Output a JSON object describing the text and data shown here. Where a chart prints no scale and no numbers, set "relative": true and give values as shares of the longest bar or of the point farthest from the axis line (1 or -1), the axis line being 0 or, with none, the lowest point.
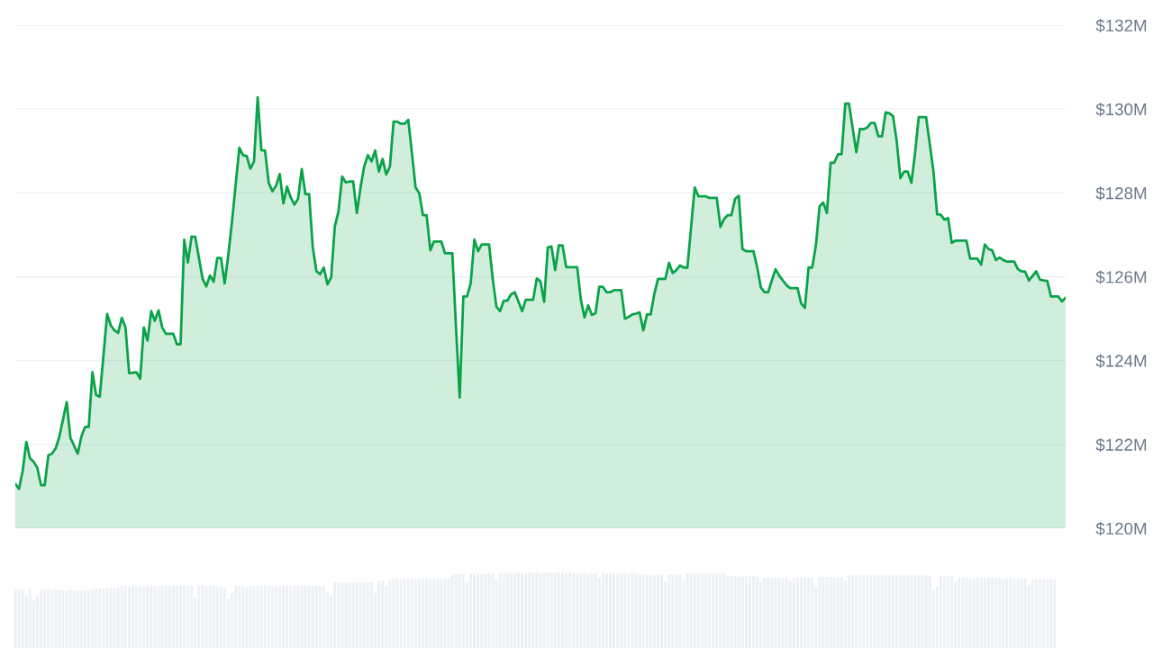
{
  "chart_data": [
    {
      "type": "area",
      "categories": [
        null,
        null,
        null,
        null,
        null,
        null,
        null,
        null,
        null,
        null,
        null,
        null,
        null,
        null,
        null,
        null,
        null,
        null,
        null,
        null,
        null,
        null,
        null,
        null,
        null,
        null,
        null,
        null,
        null,
        null,
        null,
        null,
        null,
        null,
        null,
        null,
        null,
        null,
        null,
        null,
        null,
        null,
        null,
        null,
        null,
        null,
        null,
        null,
        null,
        null,
        null,
        null,
        null,
        null,
        null,
        null,
        null,
        null,
        null,
        null,
        null,
        null,
        null,
        null,
        null,
        null,
        null,
        null,
        null,
        null,
        null,
        null,
        null,
        null,
        null,
        null,
        null,
        null,
        null,
        null,
        null,
        null,
        null,
        null,
        null,
        null,
        null,
        null,
        null,
        null,
        null,
        null,
        null,
        null,
        null,
        null,
        null,
        null,
        null,
        null,
        null,
        null,
        null,
        null,
        null,
        null,
        null,
        null,
        null,
        null,
        null,
        null,
        null,
        null,
        null,
        null,
        null,
        null,
        null,
        null,
        null,
        null,
        null,
        null,
        null,
        null,
        null,
        null,
        null,
        null,
        null,
        null,
        null,
        null,
        null,
        null,
        null,
        null,
        null,
        null,
        null,
        null,
        null,
        null,
        null,
        null,
        null,
        null,
        null,
        null,
        null,
        null,
        null,
        null,
        null,
        null,
        null,
        null,
        null,
        null,
        null,
        null,
        null,
        null,
        null,
        null,
        null,
        null,
        null,
        null,
        null,
        null,
        null,
        null,
        null,
        null,
        null,
        null,
        null,
        null,
        null,
        null,
        null,
        null,
        null,
        null,
        null,
        null,
        null,
        null,
        null,
        null,
        null,
        null,
        null,
        null,
        null,
        null,
        null,
        null,
        null,
        null,
        null,
        null,
        null,
        null,
        null,
        null,
        null,
        null,
        null,
        null,
        null,
        null,
        null,
        null,
        null,
        null,
        null,
        null,
        null,
        null,
        null,
        null,
        null,
        null,
        null,
        null,
        null,
        null,
        null,
        null,
        null,
        null,
        null,
        null,
        null,
        null,
        null,
        null,
        null,
        null,
        null,
        null,
        null,
        null,
        null,
        null,
        null,
        null,
        null,
        null,
        null,
        null,
        null,
        null,
        null,
        null,
        null,
        null,
        null,
        null,
        null,
        null,
        null,
        null,
        null,
        null,
        null,
        null,
        null,
        null,
        null,
        null,
        null,
        null,
        null,
        null,
        null,
        null,
        null,
        null,
        null,
        null,
        null,
        null,
        null
      ],
      "series": [
        {
          "color": "#0aa34a",
          "values": [
            121.06,
            120.94,
            121.37,
            122.06,
            121.67,
            121.59,
            121.44,
            121.03,
            121.03,
            121.74,
            121.78,
            121.91,
            122.19,
            122.6,
            123.01,
            122.16,
            121.97,
            121.78,
            122.19,
            122.42,
            122.42,
            123.72,
            123.18,
            123.14,
            124.12,
            125.11,
            124.84,
            124.72,
            124.66,
            125.02,
            124.79,
            123.7,
            123.71,
            123.72,
            123.57,
            124.79,
            124.48,
            125.18,
            124.95,
            125.2,
            124.79,
            124.64,
            124.64,
            124.64,
            124.39,
            124.39,
            126.88,
            126.34,
            126.96,
            126.95,
            126.45,
            125.95,
            125.77,
            126.03,
            125.88,
            126.45,
            126.45,
            125.84,
            126.52,
            127.31,
            128.2,
            129.08,
            128.9,
            128.88,
            128.58,
            128.75,
            130.28,
            129.02,
            129.01,
            128.24,
            128.04,
            128.17,
            128.45,
            127.75,
            128.15,
            127.89,
            127.72,
            127.86,
            128.57,
            127.97,
            127.97,
            126.7,
            126.13,
            126.06,
            126.22,
            125.82,
            125.98,
            127.2,
            127.56,
            128.39,
            128.25,
            128.27,
            128.27,
            127.52,
            128.13,
            128.63,
            128.9,
            128.75,
            129.01,
            128.51,
            128.81,
            128.44,
            128.63,
            129.7,
            129.7,
            129.65,
            129.65,
            129.74,
            128.95,
            128.13,
            127.99,
            127.47,
            127.47,
            126.63,
            126.84,
            126.84,
            126.84,
            126.56,
            126.56,
            126.56,
            124.8,
            123.12,
            125.53,
            125.53,
            125.84,
            126.89,
            126.61,
            126.77,
            126.77,
            126.77,
            125.95,
            125.29,
            125.18,
            125.43,
            125.43,
            125.58,
            125.63,
            125.41,
            125.18,
            125.45,
            125.45,
            125.45,
            125.96,
            125.89,
            125.4,
            126.7,
            126.72,
            126.16,
            126.75,
            126.75,
            126.23,
            126.23,
            126.23,
            126.23,
            125.45,
            125.03,
            125.32,
            125.09,
            125.13,
            125.76,
            125.76,
            125.63,
            125.63,
            125.68,
            125.68,
            125.68,
            125.0,
            125.04,
            125.1,
            125.12,
            125.15,
            124.72,
            125.1,
            125.1,
            125.59,
            125.95,
            125.95,
            125.95,
            126.33,
            126.09,
            126.16,
            126.27,
            126.22,
            126.22,
            127.17,
            128.13,
            127.92,
            127.92,
            127.92,
            127.88,
            127.88,
            127.88,
            127.19,
            127.38,
            127.47,
            127.47,
            127.86,
            127.93,
            126.66,
            126.61,
            126.61,
            126.61,
            126.23,
            125.75,
            125.63,
            125.63,
            125.91,
            126.18,
            126.03,
            125.91,
            125.8,
            125.73,
            125.73,
            125.73,
            125.36,
            125.26,
            126.22,
            126.22,
            126.75,
            127.68,
            127.77,
            127.52,
            128.72,
            128.72,
            128.92,
            128.92,
            130.13,
            130.13,
            129.55,
            128.97,
            129.53,
            129.52,
            129.56,
            129.67,
            129.67,
            129.35,
            129.35,
            129.92,
            129.9,
            129.83,
            129.24,
            128.35,
            128.51,
            128.51,
            128.24,
            128.95,
            129.81,
            129.81,
            129.81,
            129.17,
            128.52,
            127.49,
            127.48,
            127.36,
            127.4,
            126.81,
            126.86,
            126.86,
            126.86,
            126.86,
            126.43,
            126.43,
            126.43,
            126.29,
            126.77,
            126.66,
            126.63,
            126.4,
            126.46,
            126.4,
            126.36,
            126.36,
            126.36,
            126.18,
            126.13,
            126.12,
            125.91,
            126.02,
            126.13,
            125.93,
            125.91,
            125.9,
            125.53,
            125.53,
            125.53,
            125.41,
            125.5
          ]
        }
      ],
      "ylim": [
        120,
        132
      ],
      "yticks": [
        {
          "value": 120,
          "label": "$120M"
        },
        {
          "value": 122,
          "label": "$122M"
        },
        {
          "value": 124,
          "label": "$124M"
        },
        {
          "value": 126,
          "label": "$126M"
        },
        {
          "value": 128,
          "label": "$128M"
        },
        {
          "value": 130,
          "label": "$130M"
        },
        {
          "value": 132,
          "label": "$132M"
        }
      ],
      "grid": "y",
      "tick_labels": "y"
    },
    {
      "type": "bar",
      "relative": true,
      "categories": [
        null,
        null,
        null,
        null,
        null,
        null,
        null,
        null,
        null,
        null,
        null,
        null,
        null,
        null,
        null,
        null,
        null,
        null,
        null,
        null,
        null,
        null,
        null,
        null,
        null,
        null,
        null,
        null,
        null,
        null,
        null,
        null,
        null,
        null,
        null,
        null,
        null,
        null,
        null,
        null,
        null,
        null,
        null,
        null,
        null,
        null,
        null,
        null,
        null,
        null,
        null,
        null,
        null,
        null,
        null,
        null,
        null,
        null,
        null,
        null,
        null,
        null,
        null,
        null,
        null,
        null,
        null,
        null,
        null,
        null,
        null,
        null,
        null,
        null,
        null,
        null,
        null,
        null,
        null,
        null,
        null,
        null,
        null,
        null,
        null,
        null,
        null,
        null,
        null,
        null,
        null,
        null,
        null,
        null,
        null,
        null,
        null,
        null,
        null,
        null,
        null,
        null,
        null,
        null,
        null,
        null,
        null,
        null,
        null,
        null,
        null,
        null,
        null,
        null,
        null,
        null,
        null,
        null,
        null,
        null,
        null,
        null,
        null,
        null,
        null,
        null,
        null,
        null,
        null,
        null,
        null,
        null,
        null,
        null,
        null,
        null,
        null,
        null,
        null,
        null,
        null,
        null,
        null,
        null,
        null,
        null,
        null,
        null,
        null,
        null,
        null,
        null,
        null,
        null,
        null,
        null,
        null,
        null,
        null,
        null,
        null,
        null,
        null,
        null,
        null,
        null,
        null,
        null,
        null,
        null,
        null,
        null,
        null,
        null,
        null,
        null,
        null,
        null,
        null,
        null,
        null,
        null,
        null,
        null,
        null,
        null,
        null,
        null,
        null,
        null,
        null,
        null,
        null,
        null,
        null,
        null,
        null,
        null,
        null,
        null,
        null,
        null,
        null,
        null,
        null,
        null,
        null,
        null,
        null,
        null,
        null,
        null,
        null,
        null,
        null,
        null,
        null,
        null,
        null,
        null,
        null,
        null,
        null,
        null,
        null,
        null,
        null,
        null,
        null,
        null,
        null,
        null,
        null,
        null,
        null,
        null,
        null,
        null,
        null,
        null,
        null,
        null,
        null,
        null,
        null,
        null,
        null,
        null,
        null,
        null,
        null,
        null,
        null,
        null,
        null,
        null,
        null,
        null,
        null,
        null,
        null,
        null,
        null,
        null,
        null,
        null,
        null,
        null,
        null,
        null,
        null,
        null,
        null,
        null,
        null,
        null,
        null,
        null,
        null,
        null,
        null,
        null,
        null,
        null,
        null,
        null,
        null
      ],
      "series": [
        {
          "color": "#edf0f4",
          "values": [
            0.78,
            0.78,
            0.78,
            0.7,
            0.78,
            0.63,
            0.7,
            0.78,
            0.78,
            0.78,
            0.77,
            0.78,
            0.77,
            0.76,
            0.76,
            0.77,
            0.76,
            0.76,
            0.76,
            0.77,
            0.76,
            0.78,
            0.78,
            0.79,
            0.79,
            0.79,
            0.8,
            0.79,
            0.8,
            0.82,
            0.82,
            0.81,
            0.82,
            0.82,
            0.82,
            0.81,
            0.82,
            0.82,
            0.82,
            0.82,
            0.82,
            0.83,
            0.82,
            0.82,
            0.82,
            0.82,
            0.83,
            0.82,
            0.82,
            0.67,
            0.83,
            0.83,
            0.82,
            0.83,
            0.83,
            0.82,
            0.81,
            0.8,
            0.65,
            0.73,
            0.82,
            0.82,
            0.82,
            0.81,
            0.82,
            0.82,
            0.82,
            0.82,
            0.83,
            0.82,
            0.82,
            0.82,
            0.81,
            0.82,
            0.82,
            0.82,
            0.82,
            0.83,
            0.82,
            0.82,
            0.82,
            0.82,
            0.82,
            0.82,
            0.82,
            0.74,
            0.7,
            0.87,
            0.87,
            0.87,
            0.87,
            0.87,
            0.87,
            0.87,
            0.87,
            0.87,
            0.87,
            0.87,
            0.73,
            0.89,
            0.89,
            0.82,
            0.89,
            0.92,
            0.92,
            0.91,
            0.92,
            0.92,
            0.92,
            0.91,
            0.92,
            0.92,
            0.92,
            0.92,
            0.91,
            0.92,
            0.92,
            0.92,
            0.92,
            0.96,
            0.98,
            0.98,
            0.98,
            0.87,
            0.98,
            0.98,
            0.98,
            0.98,
            0.98,
            0.98,
            0.98,
            0.9,
            0.99,
            0.99,
            1.0,
            0.99,
            0.99,
            1.0,
            0.99,
            0.99,
            1.0,
            0.99,
            1.0,
            0.99,
            0.99,
            1.0,
            1.0,
            0.99,
            1.0,
            1.0,
            0.99,
            1.0,
            0.99,
            0.99,
            0.99,
            0.99,
            0.98,
            0.99,
            0.99,
            0.93,
            0.99,
            0.98,
            0.99,
            0.99,
            0.98,
            0.99,
            0.99,
            0.98,
            0.99,
            0.98,
            0.97,
            0.97,
            0.97,
            0.97,
            0.96,
            0.97,
            0.97,
            0.88,
            0.97,
            0.97,
            0.97,
            0.97,
            0.89,
            0.99,
            0.99,
            0.99,
            0.98,
            0.99,
            0.99,
            0.99,
            0.99,
            0.98,
            0.99,
            0.99,
            0.95,
            0.95,
            0.95,
            0.94,
            0.95,
            0.95,
            0.95,
            0.95,
            0.94,
            0.88,
            0.93,
            0.93,
            0.92,
            0.93,
            0.93,
            0.92,
            0.93,
            0.89,
            0.93,
            0.93,
            0.93,
            0.93,
            0.93,
            0.93,
            0.81,
            0.94,
            0.94,
            0.94,
            0.94,
            0.93,
            0.94,
            0.94,
            0.89,
            0.96,
            0.96,
            0.96,
            0.96,
            0.96,
            0.96,
            0.96,
            0.96,
            0.96,
            0.96,
            0.96,
            0.96,
            0.96,
            0.96,
            0.96,
            0.96,
            0.96,
            0.96,
            0.96,
            0.96,
            0.96,
            0.96,
            0.96,
            0.77,
            0.81,
            0.95,
            0.95,
            0.95,
            0.95,
            0.88,
            0.93,
            0.93,
            0.93,
            0.93,
            0.92,
            0.93,
            0.93,
            0.92,
            0.93,
            0.93,
            0.92,
            0.93,
            0.92,
            0.92,
            0.93,
            0.92,
            0.92,
            0.92,
            0.92,
            0.83,
            0.91,
            0.91,
            0.91,
            0.91,
            0.91,
            0.91,
            0.91,
            null,
            null,
            null
          ]
        }
      ],
      "tick_labels": false
    }
  ]
}
